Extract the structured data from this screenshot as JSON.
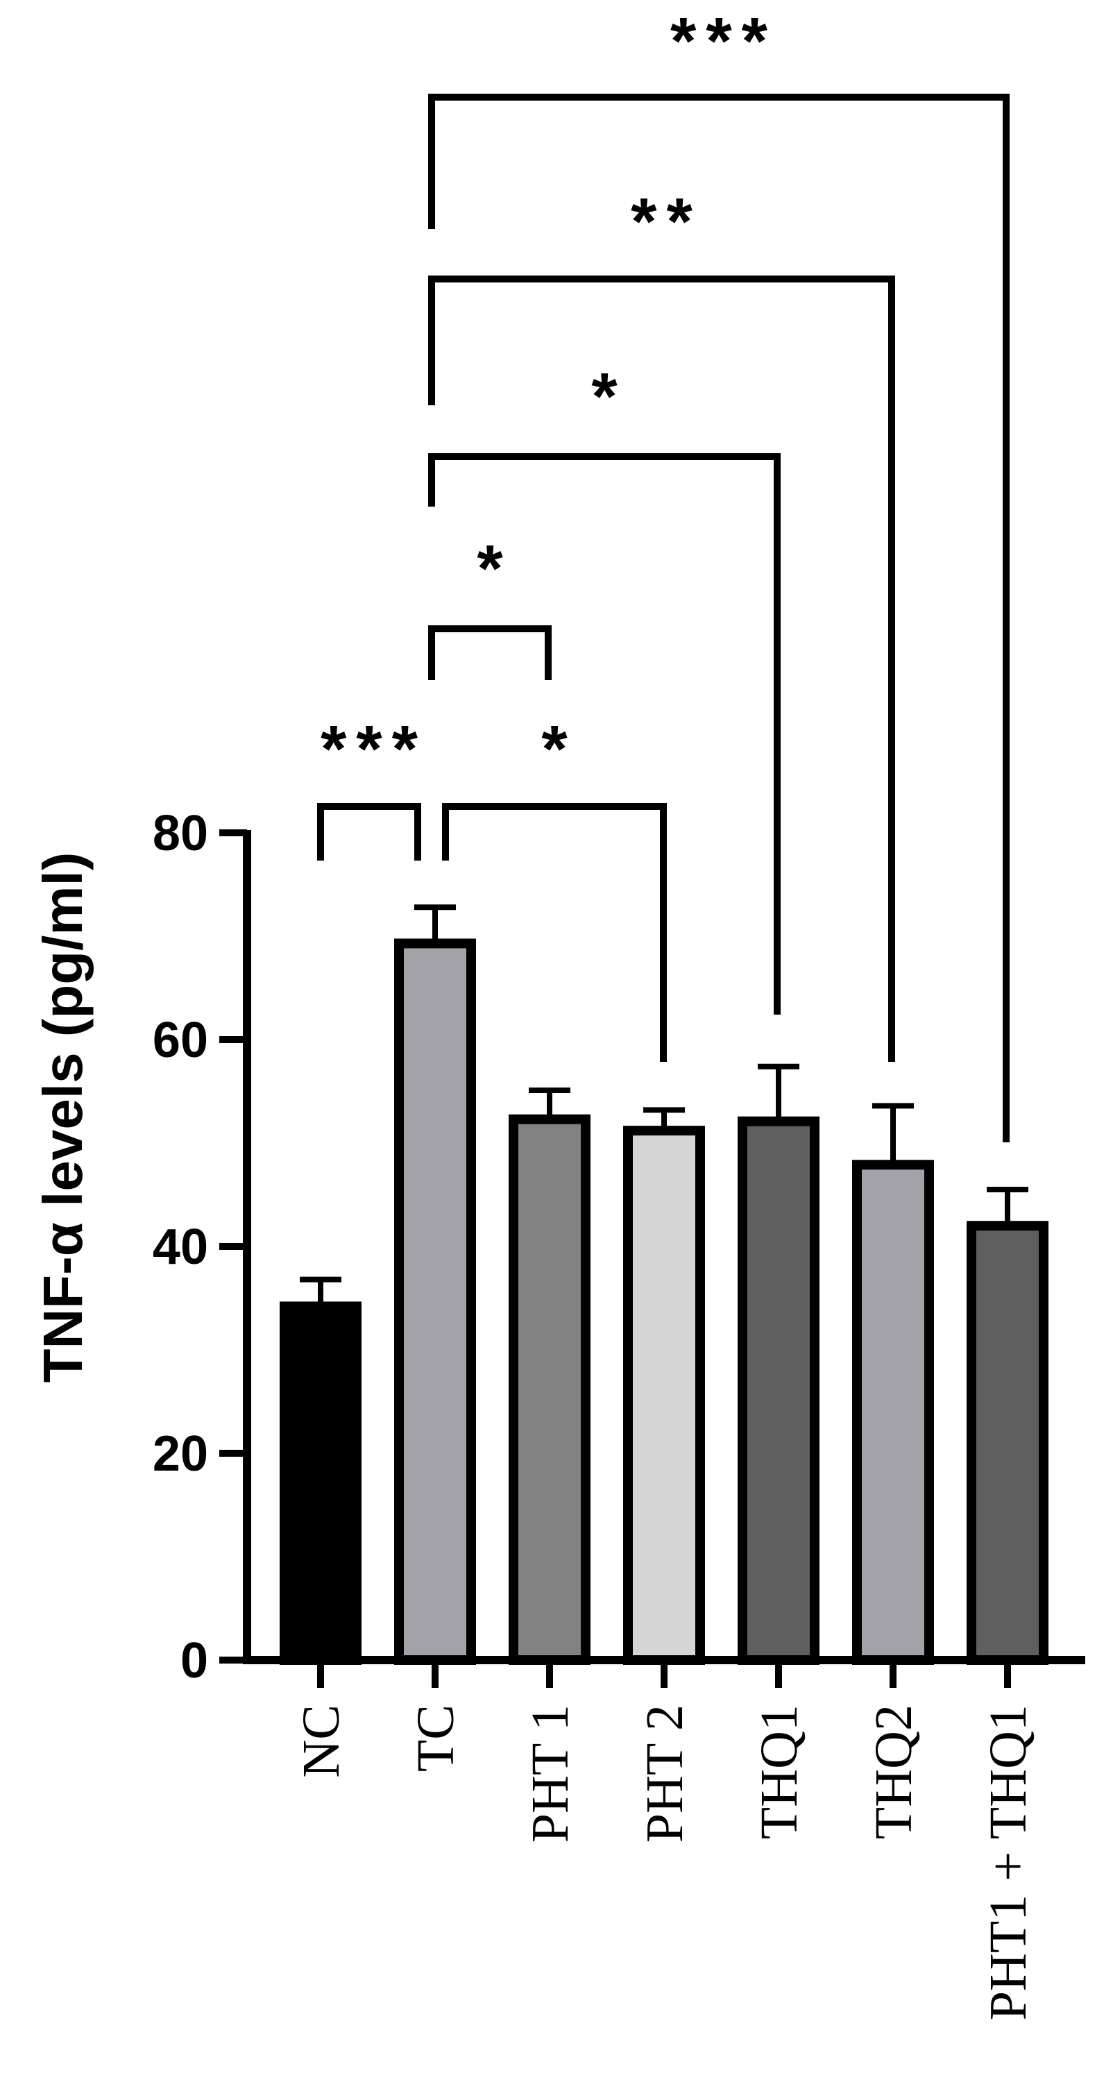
{
  "chart_data": {
    "type": "bar",
    "title": "",
    "xlabel": "",
    "ylabel": "TNF-α levels (pg/ml)",
    "ylim": [
      0,
      80
    ],
    "yticks": [
      0,
      20,
      40,
      60,
      80
    ],
    "ytick_labels": [
      "0",
      "20",
      "40",
      "60",
      "80"
    ],
    "categories": [
      "NC",
      "TC",
      "PHT 1",
      "PHT 2",
      "THQ1",
      "THQ2",
      "PHT1 + THQ1"
    ],
    "values": [
      34.2,
      69.3,
      52.3,
      51.2,
      52.1,
      47.9,
      42.0
    ],
    "errors": [
      2.6,
      3.5,
      2.8,
      2.0,
      5.3,
      5.7,
      3.5
    ],
    "colors": [
      "#000000",
      "#a2a2a8",
      "#818181",
      "#d5d5d5",
      "#5f5f5f",
      "#a2a2a8",
      "#5f5f5f"
    ],
    "legend": "none",
    "grid": false,
    "comparisons": [
      {
        "from": "NC",
        "to": "TC",
        "label": "***"
      },
      {
        "from": "TC",
        "to": "PHT 2",
        "label": "*"
      },
      {
        "from": "TC",
        "to": "PHT 1",
        "label": "*"
      },
      {
        "from": "TC",
        "to": "THQ1",
        "label": "*"
      },
      {
        "from": "TC",
        "to": "THQ2",
        "label": "**"
      },
      {
        "from": "TC",
        "to": "PHT1 + THQ1",
        "label": "***"
      }
    ]
  }
}
